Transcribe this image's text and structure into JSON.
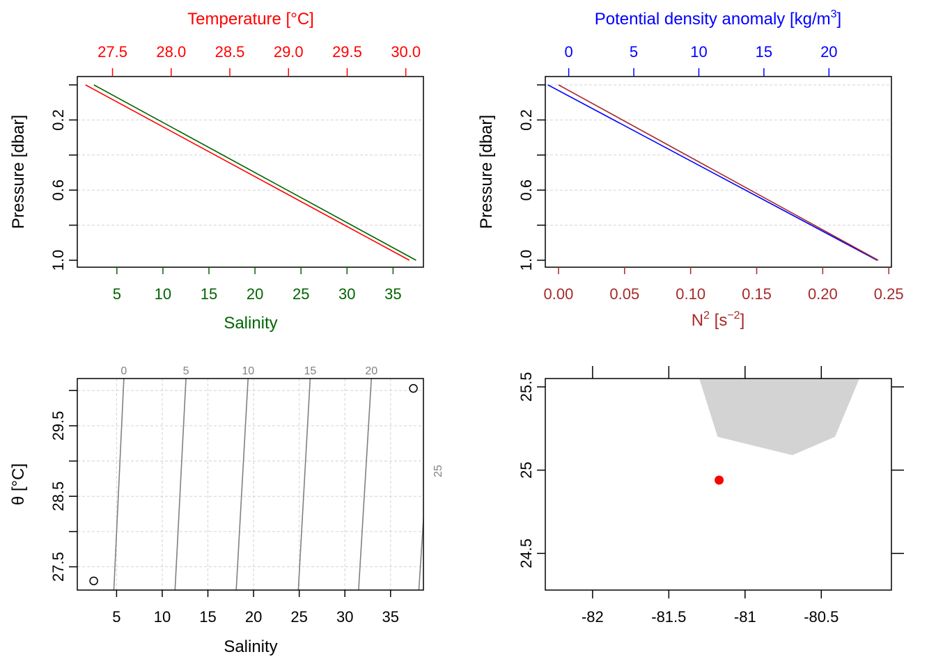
{
  "colors": {
    "temperature": "#ff0000",
    "salinity": "#006400",
    "density": "#0000ff",
    "n2": "#a52a2a",
    "land": "#d3d3d3",
    "station": "#ff0000",
    "grid": "#d3d3d3",
    "isopycnal": "#808080"
  },
  "chart_data": [
    {
      "type": "line",
      "panel": "profile-salinity-temperature",
      "top_title": "Temperature [°C]",
      "top_ticks": [
        "27.5",
        "28.0",
        "28.5",
        "29.0",
        "29.5",
        "30.0"
      ],
      "xlabel": "Salinity",
      "x_ticks": [
        "5",
        "10",
        "15",
        "20",
        "25",
        "30",
        "35"
      ],
      "ylabel": "Pressure [dbar]",
      "y_ticks": [
        "0.2",
        "0.6",
        "1.0"
      ],
      "xlim": [
        0.7,
        38.3
      ],
      "ylim": [
        1.0,
        0.0
      ],
      "top_xlim": [
        27.2,
        30.15
      ],
      "series": [
        {
          "name": "Salinity",
          "x": [
            2.5,
            37.5
          ],
          "y": [
            0.0,
            1.0
          ]
        },
        {
          "name": "Temperature",
          "x": [
            27.27,
            30.03
          ],
          "y": [
            0.0,
            1.0
          ]
        }
      ]
    },
    {
      "type": "line",
      "panel": "profile-n2-density",
      "top_title_main": "Potential density anomaly [kg/m",
      "top_title_sup": "3",
      "top_title_end": "]",
      "top_ticks": [
        "0",
        "5",
        "10",
        "15",
        "20"
      ],
      "xlabel_main": "N",
      "xlabel_sup": "2",
      "xlabel_mid": " [s",
      "xlabel_sup2": "−2",
      "xlabel_end": "]",
      "x_ticks": [
        "0.00",
        "0.05",
        "0.10",
        "0.15",
        "0.20",
        "0.25"
      ],
      "ylabel": "Pressure [dbar]",
      "y_ticks": [
        "0.2",
        "0.6",
        "1.0"
      ],
      "xlim": [
        -0.01,
        0.252
      ],
      "ylim": [
        1.0,
        0.0
      ],
      "top_xlim": [
        -1.8,
        24.8
      ],
      "series": [
        {
          "name": "N2",
          "x": [
            0.0,
            0.242
          ],
          "y": [
            0.0,
            1.0
          ]
        },
        {
          "name": "Potential density anomaly",
          "x": [
            -1.6,
            23.7
          ],
          "y": [
            0.0,
            1.0
          ]
        }
      ]
    },
    {
      "type": "scatter",
      "panel": "ts-diagram",
      "xlabel": "Salinity",
      "x_ticks": [
        "5",
        "10",
        "15",
        "20",
        "25",
        "30",
        "35"
      ],
      "ylabel": "θ [°C]",
      "y_ticks": [
        "27.5",
        "28.5",
        "29.5"
      ],
      "xlim": [
        0.7,
        38.6
      ],
      "ylim": [
        27.17,
        30.17
      ],
      "points": [
        {
          "x": 2.5,
          "y": 27.3
        },
        {
          "x": 37.5,
          "y": 30.03
        }
      ],
      "isopycnal_labels": [
        "0",
        "5",
        "10",
        "15",
        "20",
        "25"
      ],
      "isopycnals": [
        {
          "x_bottom": 4.7,
          "x_top": 5.8
        },
        {
          "x_bottom": 11.4,
          "x_top": 12.6
        },
        {
          "x_bottom": 18.1,
          "x_top": 19.4
        },
        {
          "x_bottom": 24.9,
          "x_top": 26.2
        },
        {
          "x_bottom": 31.5,
          "x_top": 32.9
        },
        {
          "x_bottom": 38.1,
          "x_top": 39.6
        }
      ]
    },
    {
      "type": "scatter",
      "panel": "station-map",
      "x_ticks": [
        "-82",
        "-81.5",
        "-81",
        "-80.5"
      ],
      "y_ticks": [
        "24.5",
        "25",
        "25.5"
      ],
      "xlim": [
        -82.31,
        -80.04
      ],
      "ylim": [
        24.28,
        25.55
      ],
      "land": [
        [
          -81.3,
          25.55
        ],
        [
          -81.18,
          25.2
        ],
        [
          -80.69,
          25.09
        ],
        [
          -80.41,
          25.2
        ],
        [
          -80.25,
          25.55
        ]
      ],
      "station": {
        "x": -81.17,
        "y": 24.94
      }
    }
  ]
}
